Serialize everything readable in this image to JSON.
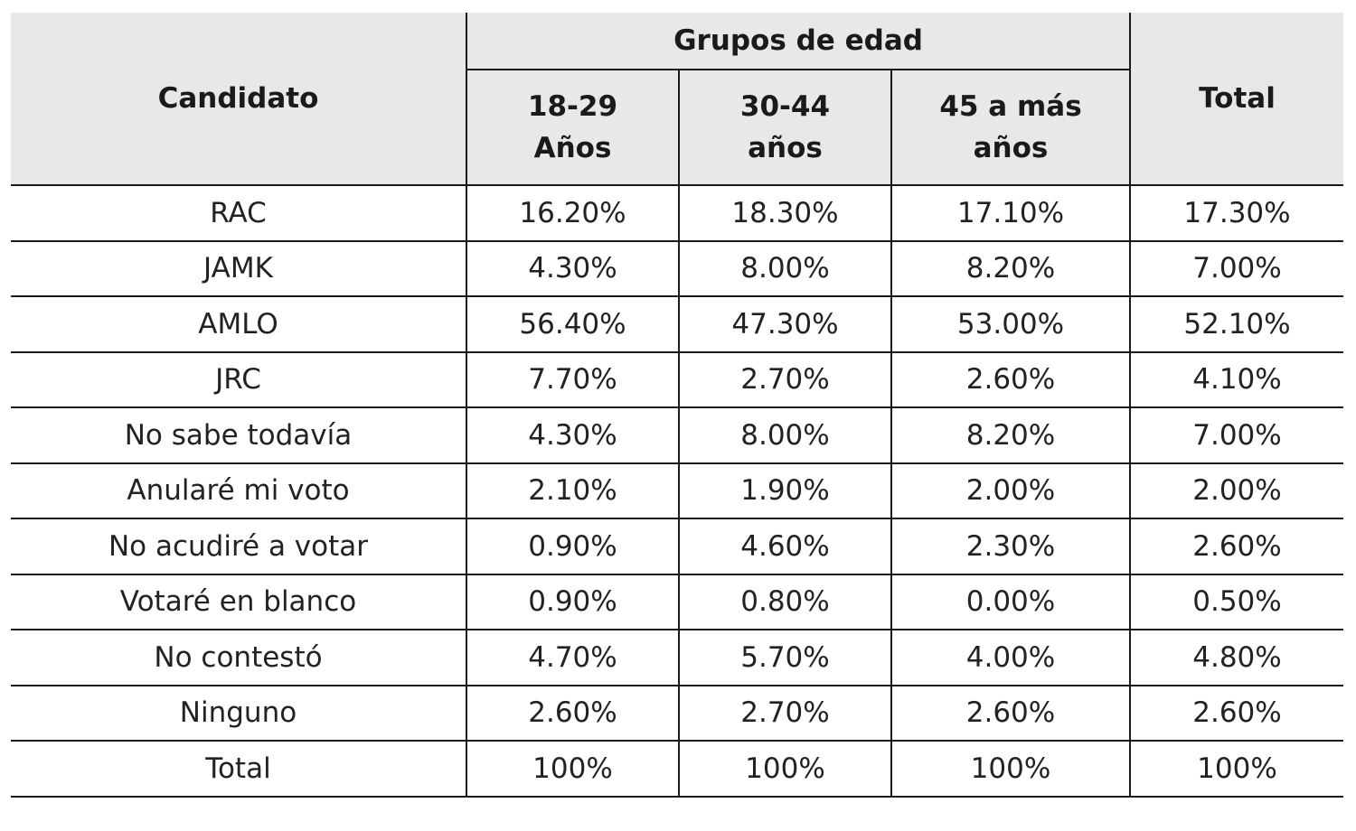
{
  "chart_data": {
    "type": "table",
    "header": {
      "candidate": "Candidato",
      "group": "Grupos de edad",
      "age_groups": [
        "18-29 Años",
        "30-44 años",
        "45 a más años"
      ],
      "age_groups_lines": [
        [
          "18-29",
          "Años"
        ],
        [
          "30-44",
          "años"
        ],
        [
          "45 a más",
          "años"
        ]
      ],
      "total": "Total"
    },
    "rows": [
      {
        "label": "RAC",
        "values": [
          "16.20%",
          "18.30%",
          "17.10%",
          "17.30%"
        ]
      },
      {
        "label": "JAMK",
        "values": [
          "4.30%",
          "8.00%",
          "8.20%",
          "7.00%"
        ]
      },
      {
        "label": "AMLO",
        "values": [
          "56.40%",
          "47.30%",
          "53.00%",
          "52.10%"
        ]
      },
      {
        "label": "JRC",
        "values": [
          "7.70%",
          "2.70%",
          "2.60%",
          "4.10%"
        ]
      },
      {
        "label": "No sabe todavía",
        "values": [
          "4.30%",
          "8.00%",
          "8.20%",
          "7.00%"
        ]
      },
      {
        "label": "Anularé mi voto",
        "values": [
          "2.10%",
          "1.90%",
          "2.00%",
          "2.00%"
        ]
      },
      {
        "label": "No acudiré a votar",
        "values": [
          "0.90%",
          "4.60%",
          "2.30%",
          "2.60%"
        ]
      },
      {
        "label": "Votaré en blanco",
        "values": [
          "0.90%",
          "0.80%",
          "0.00%",
          "0.50%"
        ]
      },
      {
        "label": "No contestó",
        "values": [
          "4.70%",
          "5.70%",
          "4.00%",
          "4.80%"
        ]
      },
      {
        "label": "Ninguno",
        "values": [
          "2.60%",
          "2.70%",
          "2.60%",
          "2.60%"
        ]
      },
      {
        "label": "Total",
        "values": [
          "100%",
          "100%",
          "100%",
          "100%"
        ]
      }
    ]
  }
}
